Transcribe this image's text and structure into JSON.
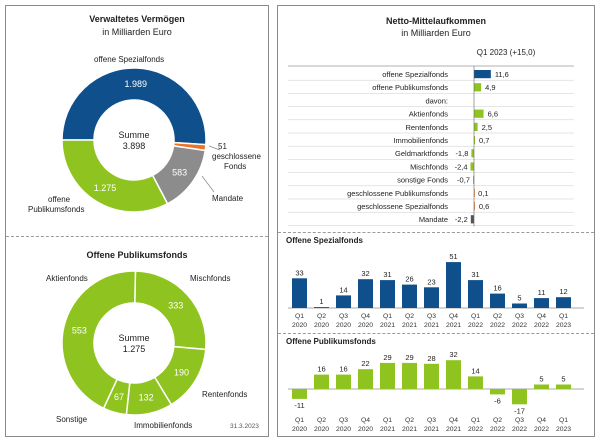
{
  "left": {
    "top_title": "Verwaltetes Vermögen",
    "top_subtitle": "in Milliarden Euro",
    "bottom_title": "Offene Publikumsfonds",
    "date": "31.3.2023"
  },
  "right": {
    "title": "Netto-Mittelaufkommen",
    "subtitle": "in Milliarden Euro",
    "quarter": "Q1 2023 (+15,0)",
    "spezial_title": "Offene Spezialfonds",
    "publikum_title": "Offene Publikumsfonds"
  },
  "colors": {
    "blue": "#0f4f8b",
    "green": "#8fc31f",
    "gray": "#8c8c8c",
    "orange": "#e8742a",
    "dark": "#555555"
  },
  "chart_data": [
    {
      "type": "pie",
      "title": "Verwaltetes Vermögen",
      "center_label": "Summe",
      "center_value": "3.898",
      "slices": [
        {
          "name": "offene Spezialfonds",
          "value": 1989,
          "label": "1.989",
          "color": "#0f4f8b"
        },
        {
          "name": "geschlossene Fonds",
          "value": 51,
          "label": "51",
          "color": "#e8742a"
        },
        {
          "name": "Mandate",
          "value": 583,
          "label": "583",
          "color": "#8c8c8c"
        },
        {
          "name": "offene Publikumsfonds",
          "value": 1275,
          "label": "1.275",
          "color": "#8fc31f"
        }
      ],
      "outside_labels": {
        "spezial": "offene Spezialfonds",
        "geschl_value": "51",
        "geschl_a": "geschlossene",
        "geschl_b": "Fonds",
        "mandate": "Mandate",
        "pub_a": "offene",
        "pub_b": "Publikumsfonds"
      }
    },
    {
      "type": "pie",
      "title": "Offene Publikumsfonds",
      "center_label": "Summe",
      "center_value": "1.275",
      "slices": [
        {
          "name": "Mischfonds",
          "value": 333,
          "label": "333"
        },
        {
          "name": "Rentenfonds",
          "value": 190,
          "label": "190"
        },
        {
          "name": "Immobilienfonds",
          "value": 132,
          "label": "132"
        },
        {
          "name": "Sonstige",
          "value": 67,
          "label": "67"
        },
        {
          "name": "Aktienfonds",
          "value": 553,
          "label": "553"
        }
      ]
    },
    {
      "type": "bar",
      "orientation": "horizontal",
      "title": "Netto-Mittelaufkommen Q1 2023",
      "rows": [
        {
          "label": "offene Spezialfonds",
          "value": 11.6,
          "text": "11,6",
          "color": "#0f4f8b"
        },
        {
          "label": "offene Publikumsfonds",
          "value": 4.9,
          "text": "4,9",
          "color": "#8fc31f"
        },
        {
          "label": "davon:",
          "value": null,
          "text": ""
        },
        {
          "label": "Aktienfonds",
          "value": 6.6,
          "text": "6,6",
          "color": "#8fc31f"
        },
        {
          "label": "Rentenfonds",
          "value": 2.5,
          "text": "2,5",
          "color": "#8fc31f"
        },
        {
          "label": "Immobilienfonds",
          "value": 0.7,
          "text": "0,7",
          "color": "#8fc31f"
        },
        {
          "label": "Geldmarktfonds",
          "value": -1.8,
          "text": "-1,8",
          "color": "#8fc31f"
        },
        {
          "label": "Mischfonds",
          "value": -2.4,
          "text": "-2,4",
          "color": "#8fc31f"
        },
        {
          "label": "sonstige Fonds",
          "value": -0.7,
          "text": "-0,7",
          "color": "#8fc31f"
        },
        {
          "label": "geschlossene Publikumsfonds",
          "value": 0.1,
          "text": "0,1",
          "color": "#e8742a"
        },
        {
          "label": "geschlossene Spezialfonds",
          "value": 0.6,
          "text": "0,6",
          "color": "#e8742a"
        },
        {
          "label": "Mandate",
          "value": -2.2,
          "text": "-2,2",
          "color": "#555555"
        }
      ]
    },
    {
      "type": "bar",
      "title": "Offene Spezialfonds",
      "categories": [
        [
          "Q1",
          "2020"
        ],
        [
          "Q2",
          "2020"
        ],
        [
          "Q3",
          "2020"
        ],
        [
          "Q4",
          "2020"
        ],
        [
          "Q1",
          "2021"
        ],
        [
          "Q2",
          "2021"
        ],
        [
          "Q3",
          "2021"
        ],
        [
          "Q4",
          "2021"
        ],
        [
          "Q1",
          "2022"
        ],
        [
          "Q2",
          "2022"
        ],
        [
          "Q3",
          "2022"
        ],
        [
          "Q4",
          "2022"
        ],
        [
          "Q1",
          "2023"
        ]
      ],
      "values": [
        33,
        1,
        14,
        32,
        31,
        26,
        23,
        51,
        31,
        16,
        5,
        11,
        12
      ],
      "ylim": [
        0,
        55
      ]
    },
    {
      "type": "bar",
      "title": "Offene Publikumsfonds",
      "categories": [
        [
          "Q1",
          "2020"
        ],
        [
          "Q2",
          "2020"
        ],
        [
          "Q3",
          "2020"
        ],
        [
          "Q4",
          "2020"
        ],
        [
          "Q1",
          "2021"
        ],
        [
          "Q2",
          "2021"
        ],
        [
          "Q3",
          "2021"
        ],
        [
          "Q4",
          "2021"
        ],
        [
          "Q1",
          "2022"
        ],
        [
          "Q2",
          "2022"
        ],
        [
          "Q3",
          "2022"
        ],
        [
          "Q4",
          "2022"
        ],
        [
          "Q1",
          "2023"
        ]
      ],
      "values": [
        -11,
        16,
        16,
        22,
        29,
        29,
        28,
        32,
        14,
        -6,
        -17,
        5,
        5
      ],
      "ylim": [
        -20,
        35
      ]
    }
  ]
}
